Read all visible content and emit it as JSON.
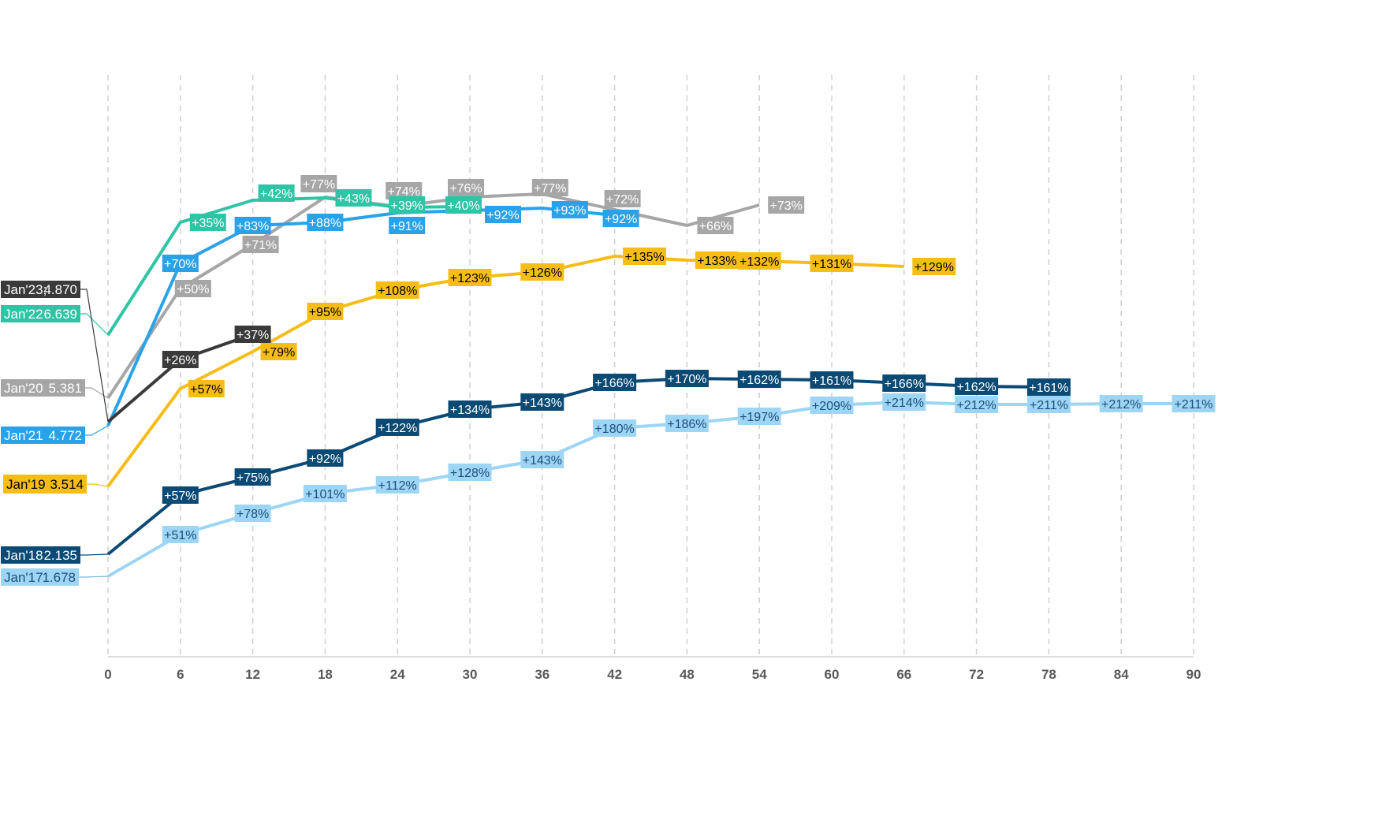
{
  "chart_data": {
    "type": "line",
    "title": "",
    "xlabel": "",
    "ylabel": "",
    "xlim": [
      0,
      90
    ],
    "x_ticks": [
      0,
      6,
      12,
      18,
      24,
      30,
      36,
      42,
      48,
      54,
      60,
      66,
      72,
      78,
      84,
      90
    ],
    "gridlines": "vertical dashed",
    "series": [
      {
        "name": "Jan'17",
        "start_label": "Jan'17",
        "start_value": "1.678",
        "color": "#9dd5f5",
        "label_text_color": "#1f4e79",
        "x": [
          0,
          6,
          12,
          18,
          24,
          30,
          36,
          42,
          48,
          54,
          60,
          66,
          72,
          78,
          84,
          90
        ],
        "labels": [
          "",
          "+51%",
          "+78%",
          "+101%",
          "+112%",
          "+128%",
          "+143%",
          "+180%",
          "+186%",
          "+197%",
          "+209%",
          "+214%",
          "+212%",
          "+211%",
          "+212%",
          "+211%"
        ]
      },
      {
        "name": "Jan'18",
        "start_label": "Jan'18",
        "start_value": "2.135",
        "color": "#0b4a74",
        "label_text_color": "#ffffff",
        "x": [
          0,
          6,
          12,
          18,
          24,
          30,
          36,
          42,
          48,
          54,
          60,
          66,
          72,
          78
        ],
        "labels": [
          "",
          "+57%",
          "+75%",
          "+92%",
          "+122%",
          "+134%",
          "+143%",
          "+166%",
          "+170%",
          "+162%",
          "+161%",
          "+166%",
          "+162%",
          "+161%"
        ]
      },
      {
        "name": "Jan'19",
        "start_label": "Jan'19",
        "start_value": "3.514",
        "color": "#f6bd16",
        "label_text_color": "#000000",
        "x": [
          0,
          6,
          12,
          18,
          24,
          30,
          36,
          42,
          48,
          54,
          60,
          66
        ],
        "labels": [
          "",
          "+57%",
          "+79%",
          "+95%",
          "+108%",
          "+123%",
          "+126%",
          "+135%",
          "+133%",
          "+132%",
          "+131%",
          "+129%"
        ]
      },
      {
        "name": "Jan'20",
        "start_label": "Jan'20",
        "start_value": "5.381",
        "color": "#a6a6a6",
        "label_text_color": "#ffffff",
        "x": [
          0,
          6,
          12,
          18,
          24,
          30,
          36,
          42,
          48,
          54
        ],
        "labels": [
          "",
          "+50%",
          "+71%",
          "+77%",
          "+74%",
          "+76%",
          "+77%",
          "+72%",
          "+66%",
          "+73%"
        ]
      },
      {
        "name": "Jan'21",
        "start_label": "Jan'21",
        "start_value": "4.772",
        "color": "#2aa2ea",
        "label_text_color": "#ffffff",
        "x": [
          0,
          6,
          12,
          18,
          24,
          30,
          36,
          42
        ],
        "labels": [
          "",
          "+70%",
          "+83%",
          "+88%",
          "+91%",
          "+92%",
          "+93%",
          "+92%"
        ]
      },
      {
        "name": "Jan'22",
        "start_label": "Jan'22",
        "start_value": "6.639",
        "color": "#2ec4a6",
        "label_text_color": "#ffffff",
        "x": [
          0,
          6,
          12,
          18,
          24,
          30
        ],
        "labels": [
          "",
          "+35%",
          "+42%",
          "+43%",
          "+39%",
          "+40%"
        ]
      },
      {
        "name": "Jan'23",
        "start_label": "Jan'23;",
        "start_value": "4.870",
        "color": "#3a3a3a",
        "label_text_color": "#ffffff",
        "x": [
          0,
          6,
          12
        ],
        "labels": [
          "",
          "+26%",
          "+37%"
        ]
      }
    ]
  }
}
